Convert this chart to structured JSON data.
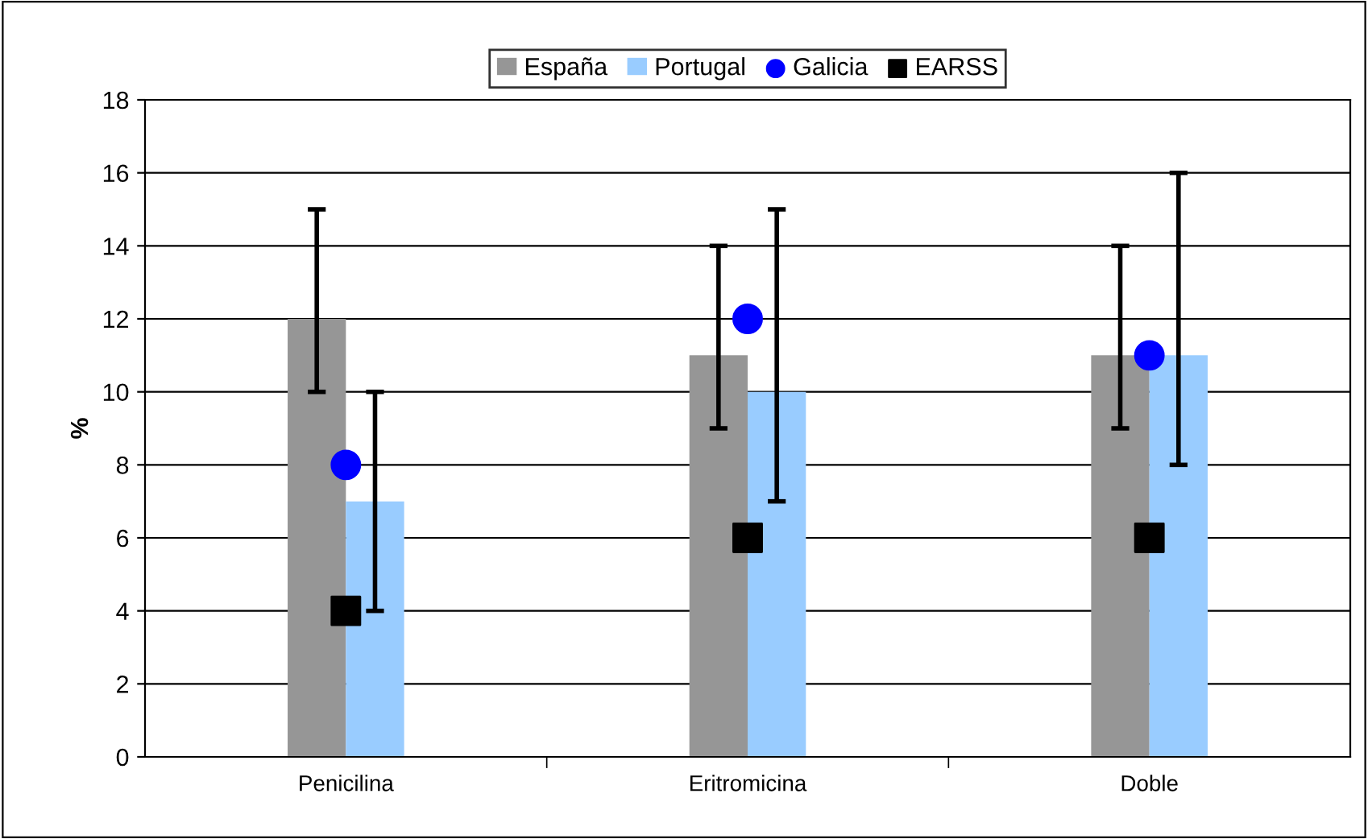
{
  "chart_data": {
    "type": "bar",
    "ylabel": "%",
    "categories": [
      "Penicilina",
      "Eritromicina",
      "Doble"
    ],
    "series": [
      {
        "name": "España",
        "color": "#969696",
        "values": [
          12,
          11,
          11
        ],
        "errors": [
          [
            10,
            15
          ],
          [
            9,
            14
          ],
          [
            9,
            14
          ]
        ]
      },
      {
        "name": "Portugal",
        "color": "#99ccff",
        "values": [
          7,
          10,
          11
        ],
        "errors": [
          [
            4,
            10
          ],
          [
            7,
            15
          ],
          [
            8,
            16
          ]
        ]
      },
      {
        "name": "Galicia",
        "type": "scatter",
        "marker": "circle",
        "color": "#0000ff",
        "x": [
          "Penicilina",
          "Eritromicina",
          "Doble"
        ],
        "values": [
          8,
          12,
          11
        ]
      },
      {
        "name": "EARSS",
        "type": "scatter",
        "marker": "square",
        "color": "#000000",
        "x": [
          "Penicilina",
          "Eritromicina",
          "Doble"
        ],
        "values": [
          4,
          6,
          6
        ]
      }
    ],
    "ylim": [
      0,
      18
    ],
    "yticks": [
      0,
      2,
      4,
      6,
      8,
      10,
      12,
      14,
      16,
      18
    ],
    "grid": "y",
    "legend": "top"
  }
}
